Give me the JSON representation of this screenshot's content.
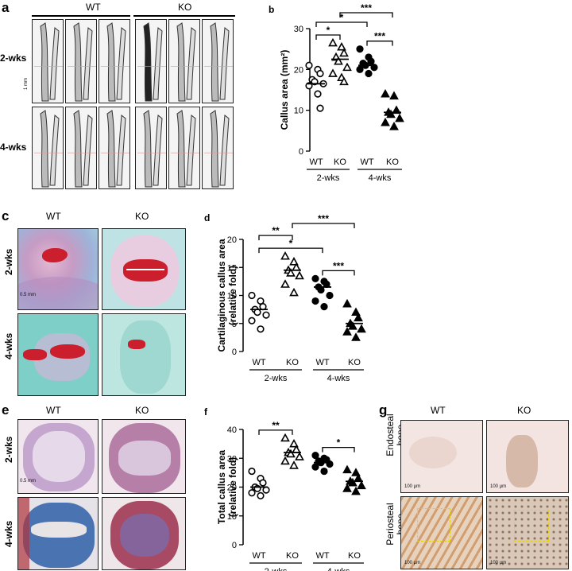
{
  "panels": {
    "a": {
      "letter": "a",
      "col_labels": [
        "WT",
        "KO"
      ],
      "row_labels": [
        "2-wks",
        "4-wks"
      ],
      "scale_label": "1 mm"
    },
    "c": {
      "letter": "c",
      "col_labels": [
        "WT",
        "KO"
      ],
      "row_labels": [
        "2-wks",
        "4-wks"
      ],
      "scale_label": "0.5 mm"
    },
    "e": {
      "letter": "e",
      "col_labels": [
        "WT",
        "KO"
      ],
      "row_labels": [
        "2-wks",
        "4-wks"
      ],
      "scale_label": "0.5 mm"
    },
    "g": {
      "letter": "g",
      "col_labels": [
        "WT",
        "KO"
      ],
      "row_labels": [
        "Endosteal bone",
        "Periosteal bone"
      ],
      "scale_label": "100 μm"
    }
  },
  "chart_data": [
    {
      "id": "b",
      "letter": "b",
      "type": "scatter",
      "ylabel": "Callus area (mm²)",
      "ylim": [
        0,
        30
      ],
      "yticks": [
        0,
        10,
        20,
        30
      ],
      "categories": [
        "WT",
        "KO",
        "WT",
        "KO"
      ],
      "groups": [
        "2-wks",
        "4-wks"
      ],
      "series": [
        {
          "marker": "circle-open",
          "values": [
            21,
            20,
            19,
            17.5,
            17,
            16.5,
            16,
            14,
            10.5
          ],
          "mean": 16.5
        },
        {
          "marker": "triangle-open",
          "values": [
            26.5,
            25.5,
            24,
            23,
            22,
            20.5,
            19,
            18,
            17
          ],
          "mean": 22.5
        },
        {
          "marker": "circle-filled",
          "values": [
            25,
            23,
            22,
            21.5,
            21,
            20.5,
            20,
            19
          ],
          "mean": 21
        },
        {
          "marker": "triangle-filled",
          "values": [
            14,
            13.5,
            10,
            9.5,
            9,
            8,
            7,
            6
          ],
          "mean": 9.5
        }
      ],
      "significance": [
        {
          "from": 0,
          "to": 1,
          "label": "*"
        },
        {
          "from": 0,
          "to": 2,
          "label": "*"
        },
        {
          "from": 2,
          "to": 3,
          "label": "***"
        },
        {
          "from": 1,
          "to": 3,
          "label": "***"
        }
      ]
    },
    {
      "id": "d",
      "letter": "d",
      "type": "scatter",
      "ylabel": "Cartilaginous callus area\n(relative fold)",
      "ylim": [
        0,
        20
      ],
      "yticks": [
        0,
        5,
        10,
        15,
        20
      ],
      "categories": [
        "WT",
        "KO",
        "WT",
        "KO"
      ],
      "groups": [
        "2-wks",
        "4-wks"
      ],
      "series": [
        {
          "marker": "circle-open",
          "values": [
            10,
            9,
            8,
            7.5,
            7,
            6.5,
            5.5,
            4
          ],
          "mean": 7.5
        },
        {
          "marker": "triangle-open",
          "values": [
            17,
            16,
            15,
            14.5,
            14,
            13.5,
            12,
            10.5
          ],
          "mean": 14.5
        },
        {
          "marker": "circle-filled",
          "values": [
            13,
            12.5,
            12,
            11.5,
            11,
            10,
            9,
            8
          ],
          "mean": 11.5
        },
        {
          "marker": "triangle-filled",
          "values": [
            8.5,
            7,
            6,
            5,
            4.5,
            4,
            3.5,
            2.5
          ],
          "mean": 5
        }
      ],
      "significance": [
        {
          "from": 0,
          "to": 2,
          "label": "*"
        },
        {
          "from": 0,
          "to": 1,
          "label": "**"
        },
        {
          "from": 1,
          "to": 3,
          "label": "***"
        },
        {
          "from": 2,
          "to": 3,
          "label": "***"
        }
      ]
    },
    {
      "id": "f",
      "letter": "f",
      "type": "scatter",
      "ylabel": "Total callus area\n(relative fold)",
      "ylim": [
        0,
        40
      ],
      "yticks": [
        0,
        10,
        20,
        30,
        40
      ],
      "categories": [
        "WT",
        "KO",
        "WT",
        "KO"
      ],
      "groups": [
        "2-wks",
        "4-wks"
      ],
      "series": [
        {
          "marker": "circle-open",
          "values": [
            25.5,
            23,
            21.5,
            20,
            19.5,
            19,
            18,
            17
          ],
          "mean": 20
        },
        {
          "marker": "triangle-open",
          "values": [
            37,
            35,
            33,
            32,
            31.5,
            30.5,
            29,
            27.5
          ],
          "mean": 32
        },
        {
          "marker": "circle-filled",
          "values": [
            31,
            30,
            29.5,
            29,
            28.5,
            28,
            27,
            25.5
          ],
          "mean": 28.5
        },
        {
          "marker": "triangle-filled",
          "values": [
            26,
            25,
            23,
            22,
            21.5,
            20.5,
            19.5,
            18.5
          ],
          "mean": 22
        }
      ],
      "significance": [
        {
          "from": 0,
          "to": 1,
          "label": "**"
        },
        {
          "from": 2,
          "to": 3,
          "label": "*"
        }
      ]
    }
  ]
}
